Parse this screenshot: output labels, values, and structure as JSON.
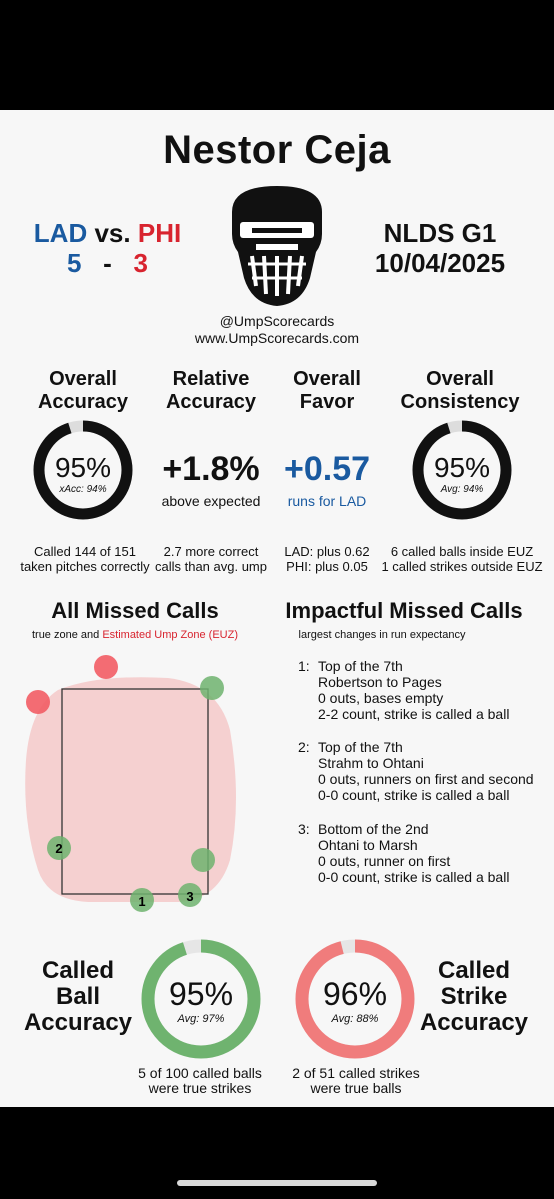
{
  "umpire": {
    "name": "Nestor Ceja"
  },
  "matchup": {
    "away": "LAD",
    "vs": "vs.",
    "home": "PHI",
    "away_score": "5",
    "dash": "-",
    "home_score": "3"
  },
  "game": {
    "label": "NLDS G1",
    "date": "10/04/2025"
  },
  "handles": {
    "twitter": "@UmpScorecards",
    "site": "www.UmpScorecards.com"
  },
  "stats": {
    "overall_accuracy": {
      "title1": "Overall",
      "title2": "Accuracy",
      "value": "95%",
      "sub": "xAcc: 94%",
      "fraction": 0.95,
      "note1": "Called 144 of 151",
      "note2": "taken pitches correctly"
    },
    "relative_accuracy": {
      "title1": "Relative",
      "title2": "Accuracy",
      "value": "+1.8%",
      "sub": "above expected",
      "note1": "2.7 more correct",
      "note2": "calls than avg. ump"
    },
    "overall_favor": {
      "title1": "Overall",
      "title2": "Favor",
      "value": "+0.57",
      "sub": "runs for LAD",
      "note1": "LAD: plus 0.62",
      "note2": "PHI: plus 0.05"
    },
    "overall_consistency": {
      "title1": "Overall",
      "title2": "Consistency",
      "value": "95%",
      "sub": "Avg: 94%",
      "fraction": 0.95,
      "note1": "6 called balls inside EUZ",
      "note2": "1 called strikes outside EUZ"
    }
  },
  "missed_calls": {
    "title": "All Missed Calls",
    "subtitle_plain": "true zone and ",
    "subtitle_red": "Estimated Ump Zone (EUZ)",
    "markers": [
      "2",
      "1",
      "3"
    ]
  },
  "impactful": {
    "title": "Impactful Missed Calls",
    "subtitle": "largest changes in run expectancy",
    "items": [
      {
        "num": "1:",
        "l1": "Top of the 7th",
        "l2": "Robertson to Pages",
        "l3": "0 outs, bases empty",
        "l4": "2-2 count, strike is called a ball"
      },
      {
        "num": "2:",
        "l1": "Top of the 7th",
        "l2": "Strahm to Ohtani",
        "l3": "0 outs, runners on first and second",
        "l4": "0-0 count, strike is called a ball"
      },
      {
        "num": "3:",
        "l1": "Bottom of the 2nd",
        "l2": "Ohtani to Marsh",
        "l3": "0 outs, runner on first",
        "l4": "0-0 count, strike is called a ball"
      }
    ]
  },
  "called_ball": {
    "t1": "Called",
    "t2": "Ball",
    "t3": "Accuracy",
    "value": "95%",
    "sub": "Avg: 97%",
    "fraction": 0.95,
    "note1": "5 of 100 called balls",
    "note2": "were true strikes",
    "color": "#6fb36f"
  },
  "called_strike": {
    "t1": "Called",
    "t2": "Strike",
    "t3": "Accuracy",
    "value": "96%",
    "sub": "Avg: 88%",
    "fraction": 0.96,
    "note1": "2 of 51 called strikes",
    "note2": "were true balls",
    "color": "#f07c7c"
  }
}
